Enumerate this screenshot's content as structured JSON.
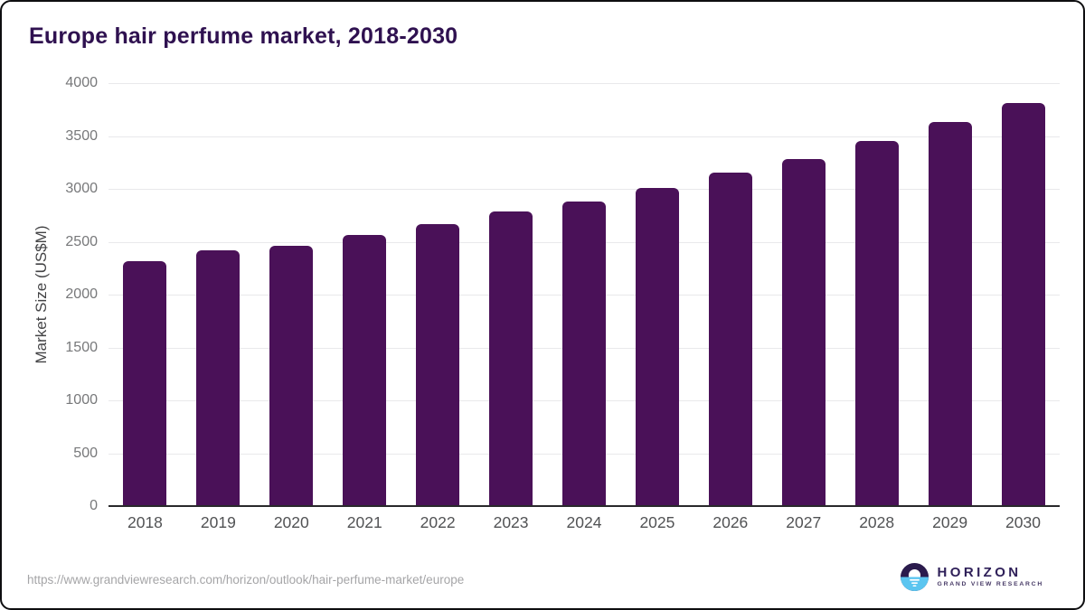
{
  "page": {
    "title": "Europe hair perfume market, 2018-2030"
  },
  "chart_data": {
    "type": "bar",
    "title": "Europe hair perfume market, 2018-2030",
    "categories": [
      "2018",
      "2019",
      "2020",
      "2021",
      "2022",
      "2023",
      "2024",
      "2025",
      "2026",
      "2027",
      "2028",
      "2029",
      "2030"
    ],
    "values": [
      2320,
      2415,
      2460,
      2565,
      2670,
      2790,
      2885,
      3005,
      3150,
      3285,
      3450,
      3630,
      3815
    ],
    "xlabel": "",
    "ylabel": "Market Size (US$M)",
    "ylim": [
      0,
      4000
    ],
    "yticks": [
      0,
      500,
      1000,
      1500,
      2000,
      2500,
      3000,
      3500,
      4000
    ],
    "grid": "horizontal-only",
    "legend": "none",
    "bar_color": "#4a1158"
  },
  "footer": {
    "source_url": "https://www.grandviewresearch.com/horizon/outlook/hair-perfume-market/europe",
    "logo": {
      "brand": "HORIZON",
      "sub_brand": "GRAND VIEW RESEARCH"
    }
  },
  "colors": {
    "title_text": "#2f1150",
    "bar": "#4a1158",
    "gridline": "#e9e9eb",
    "axis_line": "#29292b",
    "y_tick_text": "#77787a",
    "x_tick_text": "#515254",
    "url_text": "#a5a5a7",
    "logo_dark": "#2b1b4d",
    "logo_blue": "#5bc5f0"
  }
}
